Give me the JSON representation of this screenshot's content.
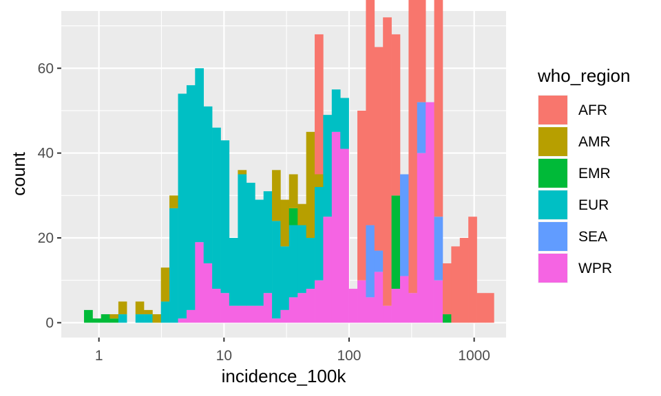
{
  "chart_data": {
    "type": "bar",
    "subtype": "stacked-histogram",
    "x_scale": "log10",
    "xlabel": "incidence_100k",
    "ylabel": "count",
    "xlim": [
      0.5,
      1800
    ],
    "ylim": [
      -3.5,
      73.5
    ],
    "x_ticks": [
      1,
      10,
      100,
      1000
    ],
    "x_tick_labels": [
      "1",
      "10",
      "100",
      "1000"
    ],
    "y_ticks": [
      0,
      20,
      40,
      60
    ],
    "y_tick_labels": [
      "0",
      "20",
      "40",
      "60"
    ],
    "grid": true,
    "legend": {
      "title": "who_region",
      "position": "right"
    },
    "bin_edges": [
      0.76,
      0.89,
      1.04,
      1.22,
      1.43,
      1.67,
      1.96,
      2.29,
      2.68,
      3.13,
      3.66,
      4.29,
      5.02,
      5.87,
      6.87,
      8.04,
      9.41,
      11.0,
      12.9,
      15.1,
      17.7,
      20.7,
      24.2,
      28.3,
      33.1,
      38.8,
      45.4,
      53.1,
      62.1,
      72.7,
      85.1,
      99.5,
      116.5,
      136.3,
      159.5,
      186.6,
      218.4,
      255.6,
      299.1,
      349.9,
      409.5,
      479.1,
      560.7,
      656.1,
      767.7,
      898.4,
      1051.2,
      1230.1,
      1439.5
    ],
    "series": [
      {
        "name": "AFR",
        "color": "#F8766D",
        "values": [
          0,
          0,
          0,
          0,
          0,
          0,
          0,
          0,
          0,
          0,
          0,
          0,
          0,
          0,
          0,
          0,
          0,
          0,
          0,
          0,
          0,
          0,
          0,
          0,
          0,
          0,
          0,
          33,
          0,
          0,
          0,
          0,
          40,
          69,
          48,
          68,
          38,
          0,
          73,
          72,
          0,
          55,
          12,
          18,
          20,
          25,
          7,
          7
        ]
      },
      {
        "name": "AMR",
        "color": "#B79F00",
        "values": [
          0,
          0,
          0,
          1,
          3,
          0,
          3,
          1,
          2,
          8,
          3,
          0,
          0,
          0,
          0,
          0,
          0,
          0,
          1,
          0,
          0,
          0,
          12,
          11,
          8,
          5,
          25,
          3,
          0,
          0,
          0,
          0,
          0,
          0,
          0,
          0,
          0,
          0,
          0,
          0,
          0,
          0,
          0,
          0,
          0,
          0,
          0,
          0
        ]
      },
      {
        "name": "EMR",
        "color": "#00BA38",
        "values": [
          3,
          1,
          2,
          1,
          0,
          0,
          0,
          0,
          0,
          0,
          0,
          0,
          0,
          0,
          0,
          0,
          0,
          0,
          0,
          0,
          0,
          0,
          0,
          0,
          4,
          0,
          0,
          0,
          0,
          0,
          0,
          0,
          0,
          0,
          0,
          0,
          22,
          0,
          0,
          0,
          0,
          0,
          2,
          0,
          0,
          0,
          0,
          0
        ]
      },
      {
        "name": "EUR",
        "color": "#00BFC4",
        "values": [
          0,
          0,
          0,
          0,
          2,
          0,
          2,
          2,
          0,
          5,
          27,
          53,
          53,
          41,
          37,
          38,
          36,
          16,
          31,
          29,
          25,
          24,
          23,
          15,
          17,
          16,
          12,
          22,
          24,
          10,
          12,
          0,
          0,
          0,
          0,
          0,
          0,
          0,
          0,
          0,
          0,
          0,
          0,
          0,
          0,
          0,
          0,
          0
        ]
      },
      {
        "name": "SEA",
        "color": "#619CFF",
        "values": [
          0,
          0,
          0,
          0,
          0,
          0,
          0,
          0,
          0,
          0,
          0,
          0,
          0,
          0,
          0,
          0,
          0,
          0,
          0,
          0,
          0,
          0,
          0,
          0,
          0,
          0,
          0,
          0,
          0,
          0,
          0,
          0,
          0,
          17,
          5,
          0,
          0,
          24,
          0,
          12,
          0,
          15,
          0,
          0,
          0,
          0,
          0,
          0
        ]
      },
      {
        "name": "WPR",
        "color": "#F564E3",
        "values": [
          0,
          0,
          0,
          0,
          0,
          0,
          0,
          0,
          0,
          0,
          0,
          1,
          3,
          19,
          14,
          8,
          7,
          4,
          4,
          4,
          4,
          7,
          1,
          3,
          6,
          7,
          8,
          10,
          25,
          45,
          41,
          8,
          10,
          6,
          12,
          4,
          8,
          11,
          7,
          40,
          52,
          10,
          0,
          0,
          0,
          0,
          0,
          0
        ]
      }
    ]
  }
}
